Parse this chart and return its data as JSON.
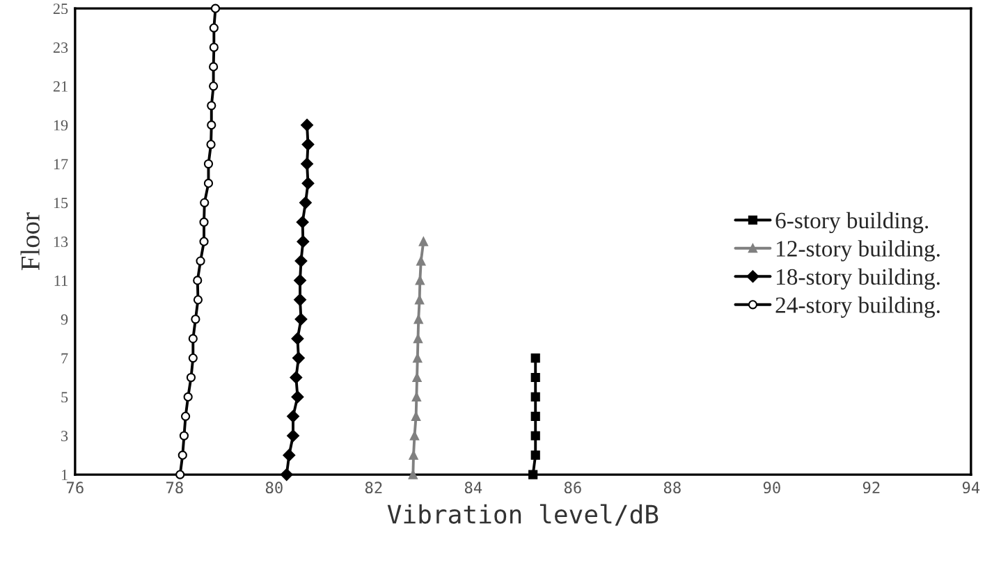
{
  "chart_data": {
    "type": "line",
    "xlabel": "Vibration level/dB",
    "ylabel": "Floor",
    "xlim": [
      76,
      94
    ],
    "xticks": [
      76,
      78,
      80,
      82,
      84,
      86,
      88,
      90,
      92,
      94
    ],
    "ylim": [
      1,
      25
    ],
    "yticks": [
      1,
      3,
      5,
      7,
      9,
      11,
      13,
      15,
      17,
      19,
      21,
      23,
      25
    ],
    "grid": false,
    "legend": "right",
    "line_style": "solid",
    "series": [
      {
        "name": "6-story building.",
        "color": "#000000",
        "marker": "square",
        "x": [
          85.2,
          85.25,
          85.25,
          85.25,
          85.25,
          85.25,
          85.25
        ],
        "values": [
          1,
          2,
          3,
          4,
          5,
          6,
          7
        ]
      },
      {
        "name": "12-story building.",
        "color": "#808080",
        "marker": "triangle",
        "x": [
          82.79,
          82.8,
          82.82,
          82.85,
          82.86,
          82.87,
          82.88,
          82.89,
          82.9,
          82.92,
          82.93,
          82.95,
          83.0
        ],
        "values": [
          1,
          2,
          3,
          4,
          5,
          6,
          7,
          8,
          9,
          10,
          11,
          12,
          13
        ]
      },
      {
        "name": "18-story building.",
        "color": "#000000",
        "marker": "diamond",
        "x": [
          80.25,
          80.3,
          80.38,
          80.38,
          80.47,
          80.44,
          80.49,
          80.47,
          80.54,
          80.52,
          80.52,
          80.54,
          80.58,
          80.57,
          80.63,
          80.68,
          80.66,
          80.68,
          80.66
        ],
        "values": [
          1,
          2,
          3,
          4,
          5,
          6,
          7,
          8,
          9,
          10,
          11,
          12,
          13,
          14,
          15,
          16,
          17,
          18,
          19
        ]
      },
      {
        "name": "24-story building.",
        "color": "#000000",
        "marker": "circle",
        "x": [
          78.11,
          78.16,
          78.19,
          78.22,
          78.27,
          78.33,
          78.37,
          78.37,
          78.42,
          78.47,
          78.46,
          78.52,
          78.59,
          78.59,
          78.6,
          78.68,
          78.68,
          78.73,
          78.74,
          78.74,
          78.78,
          78.78,
          78.79,
          78.79,
          78.82
        ],
        "values": [
          1,
          2,
          3,
          4,
          5,
          6,
          7,
          8,
          9,
          10,
          11,
          12,
          13,
          14,
          15,
          16,
          17,
          18,
          19,
          20,
          21,
          22,
          23,
          24,
          25
        ]
      }
    ]
  }
}
